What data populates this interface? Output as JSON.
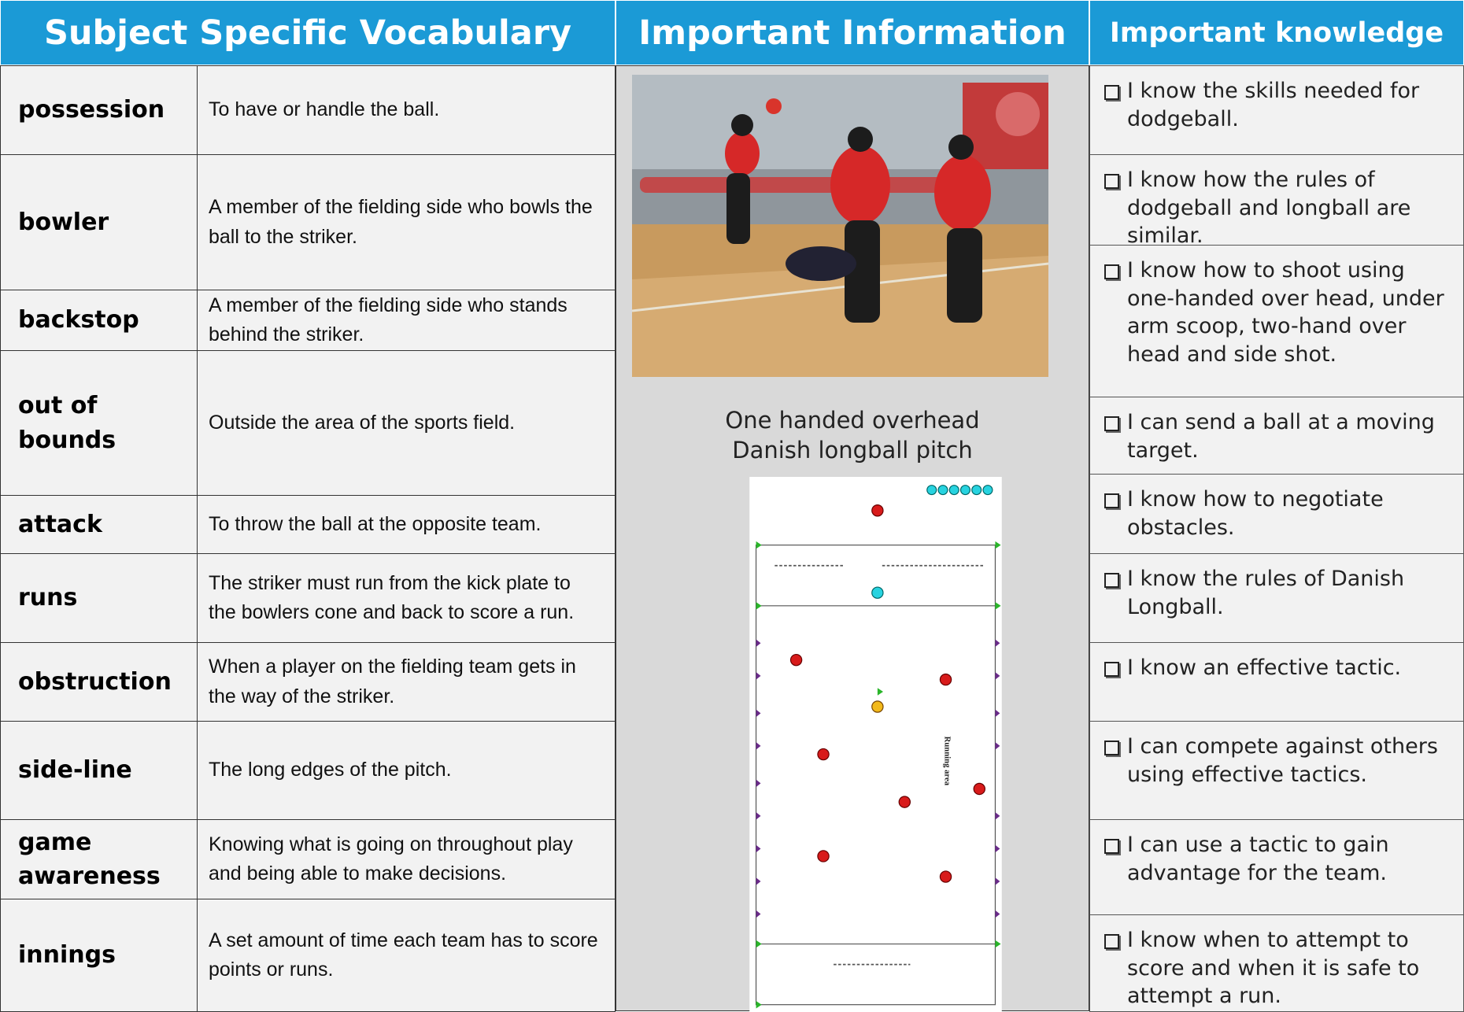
{
  "header": {
    "vocabulary": "Subject Specific Vocabulary",
    "information": "Important Information",
    "knowledge": "Important knowledge"
  },
  "vocabulary": [
    [
      "possession",
      "To have or handle the ball."
    ],
    [
      "bowler",
      "A member of the fielding side who bowls the ball to the striker."
    ],
    [
      "backstop",
      "A member of the fielding side who stands behind the striker."
    ],
    [
      "out of bounds",
      "Outside the area of the sports field."
    ],
    [
      "attack",
      "To throw the ball at the opposite team."
    ],
    [
      "runs",
      "The striker must run from the kick plate to the bowlers cone and back to score a run."
    ],
    [
      "obstruction",
      "When a player on the fielding team gets in the way of the striker."
    ],
    [
      "side-line",
      "The long edges of the pitch."
    ],
    [
      "game awareness",
      "Knowing what is going on throughout play and being able to make decisions."
    ],
    [
      "innings",
      "A set amount of time each team has to score points or runs."
    ]
  ],
  "information": {
    "captions": [
      "One handed overhead",
      "Danish longball pitch"
    ],
    "pitch_label": "Running area"
  },
  "knowledge": [
    "I know the skills needed for dodgeball.",
    "I know how the rules of dodgeball and longball are similar.",
    "I know how to shoot using one-handed over head, under arm scoop, two-hand over head and side shot.",
    "I can send a ball at a moving target.",
    "I know how to negotiate obstacles.",
    "I know the rules of Danish Longball.",
    "I know an effective tactic.",
    "I can compete against others using effective tactics.",
    "I can use a tactic to gain advantage for the team.",
    "I know when to attempt to score and when it is safe to attempt a run."
  ]
}
